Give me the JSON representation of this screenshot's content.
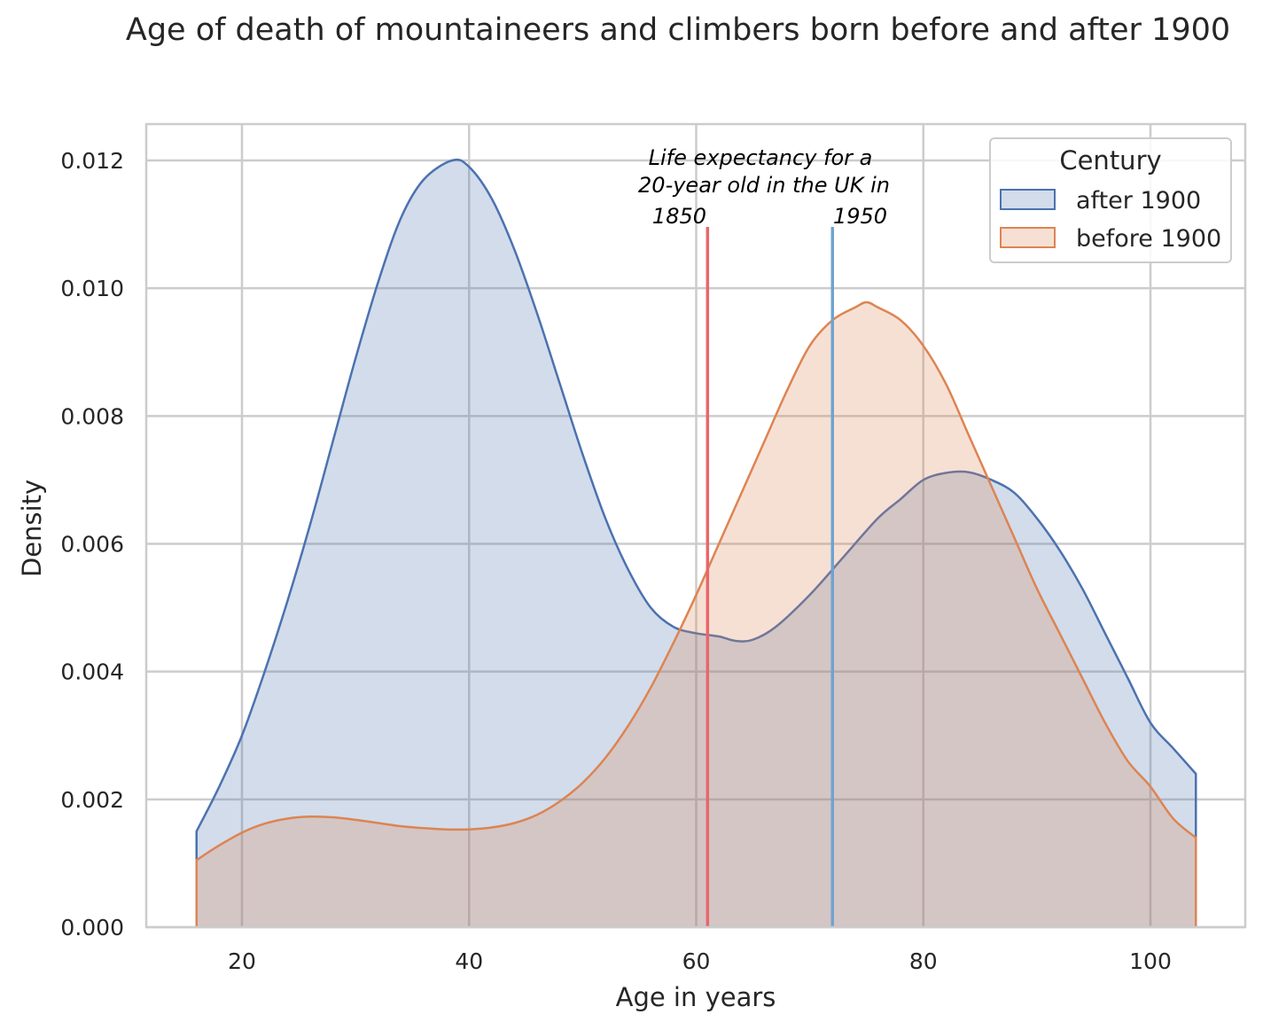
{
  "chart_data": {
    "type": "area",
    "title": "Age of death of mountaineers and climbers born before and after 1900",
    "xlabel": "Age in years",
    "ylabel": "Density",
    "xlim": [
      12,
      105
    ],
    "ylim": [
      0,
      0.0126
    ],
    "x_ticks": [
      20,
      40,
      60,
      80,
      100
    ],
    "y_ticks": [
      0.0,
      0.002,
      0.004,
      0.006,
      0.008,
      0.01,
      0.012
    ],
    "y_tick_labels": [
      "0.000",
      "0.002",
      "0.004",
      "0.006",
      "0.008",
      "0.010",
      "0.012"
    ],
    "grid": true,
    "legend": {
      "title": "Century",
      "placement": "top-right"
    },
    "series": [
      {
        "name": "after 1900",
        "color": "#4c72b0",
        "x": [
          16,
          18,
          20,
          22,
          24,
          26,
          28,
          30,
          32,
          34,
          36,
          38.5,
          40,
          42,
          44,
          46,
          48,
          50,
          52,
          54,
          56,
          58,
          60,
          62,
          63.5,
          65,
          67,
          70,
          73,
          76,
          78,
          80,
          82,
          84,
          86,
          88,
          90,
          92,
          94,
          96,
          98,
          100,
          102,
          104
        ],
        "y": [
          0.0015,
          0.0022,
          0.003,
          0.004,
          0.0051,
          0.0063,
          0.0076,
          0.0089,
          0.0101,
          0.0111,
          0.0117,
          0.012,
          0.0119,
          0.0114,
          0.0106,
          0.0096,
          0.0085,
          0.0074,
          0.0064,
          0.0056,
          0.005,
          0.0047,
          0.0046,
          0.00455,
          0.00448,
          0.0045,
          0.0047,
          0.0052,
          0.0058,
          0.0064,
          0.0067,
          0.007,
          0.00711,
          0.00712,
          0.007,
          0.0068,
          0.0064,
          0.0059,
          0.0053,
          0.0046,
          0.0039,
          0.0032,
          0.0028,
          0.0024
        ]
      },
      {
        "name": "before 1900",
        "color": "#dd8452",
        "x": [
          16,
          18,
          20,
          22,
          24,
          26,
          28,
          30,
          32,
          34,
          36,
          38,
          40,
          42,
          44,
          46,
          48,
          50,
          52,
          54,
          56,
          58,
          60,
          62,
          64,
          66,
          68,
          70,
          72,
          74,
          75,
          76,
          78,
          80,
          82,
          84,
          86,
          88,
          90,
          92,
          94,
          96,
          98,
          100,
          102,
          104
        ],
        "y": [
          0.00105,
          0.00128,
          0.00148,
          0.00162,
          0.0017,
          0.00173,
          0.00172,
          0.00168,
          0.00163,
          0.00158,
          0.00155,
          0.00153,
          0.00153,
          0.00156,
          0.00163,
          0.00176,
          0.00197,
          0.00226,
          0.00265,
          0.00315,
          0.00375,
          0.00445,
          0.0052,
          0.006,
          0.0068,
          0.0076,
          0.0084,
          0.0091,
          0.0095,
          0.0097,
          0.00978,
          0.0097,
          0.0095,
          0.0091,
          0.0085,
          0.0077,
          0.0069,
          0.0061,
          0.0053,
          0.0046,
          0.0039,
          0.0032,
          0.0026,
          0.0022,
          0.0017,
          0.0014
        ]
      }
    ],
    "reference_lines": [
      {
        "x": 61,
        "label": "1850",
        "color": "#e8676b"
      },
      {
        "x": 72,
        "label": "1950",
        "color": "#6fa3cf"
      }
    ],
    "annotation": [
      "Life expectancy for a",
      "20-year old in the UK in"
    ]
  }
}
